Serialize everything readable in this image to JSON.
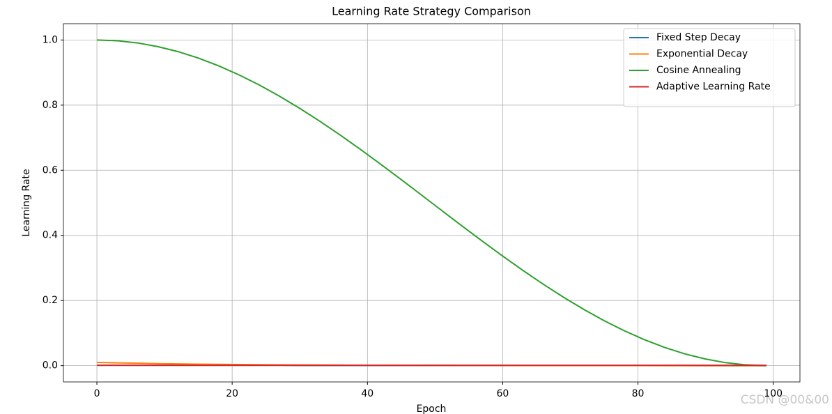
{
  "chart_data": {
    "type": "line",
    "title": "Learning Rate Strategy Comparison",
    "xlabel": "Epoch",
    "ylabel": "Learning Rate",
    "watermark": "CSDN @00&00",
    "x": [
      0,
      3,
      6,
      9,
      12,
      15,
      18,
      21,
      24,
      27,
      30,
      33,
      36,
      39,
      42,
      45,
      48,
      51,
      54,
      57,
      60,
      63,
      66,
      69,
      72,
      75,
      78,
      81,
      84,
      87,
      90,
      93,
      96,
      99
    ],
    "series": [
      {
        "name": "Fixed Step Decay",
        "color": "#1f77b4",
        "values": [
          0.001,
          0.001,
          0.001,
          0.001,
          0.001,
          0.001,
          0.001,
          0.001,
          0.001,
          0.001,
          0.0005,
          0.0005,
          0.0005,
          0.0005,
          0.0005,
          0.0005,
          0.0005,
          0.0005,
          0.0005,
          0.0005,
          0.00025,
          0.00025,
          0.00025,
          0.00025,
          0.00025,
          0.00025,
          0.00025,
          0.00025,
          0.00025,
          0.00025,
          0.000125,
          0.000125,
          0.000125,
          0.000125
        ]
      },
      {
        "name": "Exponential Decay",
        "color": "#ff7f0e",
        "values": [
          0.01,
          0.0086,
          0.0074,
          0.0063,
          0.0054,
          0.0046,
          0.004,
          0.0034,
          0.0029,
          0.0025,
          0.0021,
          0.0018,
          0.0016,
          0.0013,
          0.0012,
          0.001,
          0.0009,
          0.0007,
          0.0006,
          0.0005,
          0.0005,
          0.0004,
          0.0003,
          0.0003,
          0.0002,
          0.0002,
          0.0002,
          0.0002,
          0.0001,
          0.0001,
          0.0001,
          0.0001,
          0.0001,
          0.0001
        ]
      },
      {
        "name": "Cosine Annealing",
        "color": "#2ca02c",
        "values": [
          1.0,
          0.9977,
          0.991,
          0.9797,
          0.9642,
          0.9444,
          0.9206,
          0.893,
          0.8619,
          0.8274,
          0.79,
          0.75,
          0.7077,
          0.6635,
          0.6179,
          0.5712,
          0.5238,
          0.4762,
          0.4288,
          0.3821,
          0.3365,
          0.2923,
          0.25,
          0.21,
          0.1726,
          0.1381,
          0.107,
          0.0794,
          0.0556,
          0.0358,
          0.0203,
          0.009,
          0.0023,
          0.0
        ]
      },
      {
        "name": "Adaptive Learning Rate",
        "color": "#d62728",
        "values": [
          0.001,
          0.001,
          0.001,
          0.001,
          0.001,
          0.001,
          0.001,
          0.001,
          0.001,
          0.001,
          0.001,
          0.001,
          0.001,
          0.001,
          0.001,
          0.001,
          0.001,
          0.001,
          0.001,
          0.001,
          0.001,
          0.001,
          0.001,
          0.001,
          0.001,
          0.001,
          0.001,
          0.001,
          0.001,
          0.001,
          0.001,
          0.001,
          0.001,
          0.001
        ]
      }
    ],
    "xlim": [
      -4.95,
      103.95
    ],
    "ylim": [
      -0.05,
      1.05
    ],
    "xticks": [
      0,
      20,
      40,
      60,
      80,
      100
    ],
    "yticks": [
      {
        "value": 0,
        "label": "0.0"
      },
      {
        "value": 0.2,
        "label": "0.2"
      },
      {
        "value": 0.4,
        "label": "0.4"
      },
      {
        "value": 0.6,
        "label": "0.6"
      },
      {
        "value": 0.8,
        "label": "0.8"
      },
      {
        "value": 1,
        "label": "1.0"
      }
    ],
    "grid": true,
    "legend": "upper right"
  }
}
